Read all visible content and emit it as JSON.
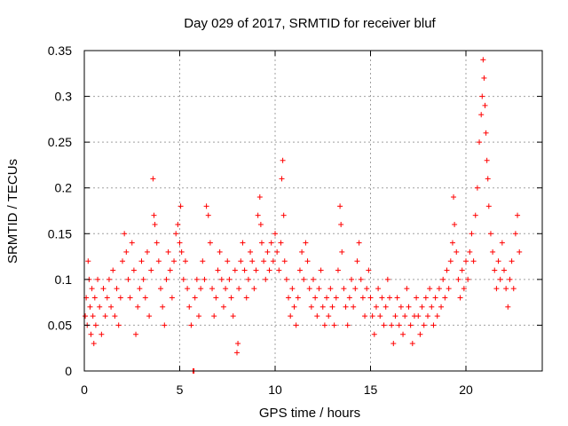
{
  "chart_data": {
    "type": "scatter",
    "title": "Day 029 of 2017, SRMTID for receiver bluf",
    "xlabel": "GPS time / hours",
    "ylabel": "SRMTID / TECUs",
    "xlim": [
      0,
      24
    ],
    "ylim": [
      0,
      0.35
    ],
    "xticks": [
      0,
      5,
      10,
      15,
      20
    ],
    "xtick_labels": [
      "0",
      "5",
      "10",
      "15",
      "20"
    ],
    "yticks": [
      0,
      0.05,
      0.1,
      0.15,
      0.2,
      0.25,
      0.3,
      0.35
    ],
    "ytick_labels": [
      "0",
      "0.05",
      "0.1",
      "0.15",
      "0.2",
      "0.25",
      "0.3",
      "0.35"
    ],
    "grid": true,
    "marker": "plus",
    "color": "#ff0000",
    "series": [
      {
        "name": "SRMTID",
        "points": [
          [
            0.05,
            0.06
          ],
          [
            0.1,
            0.08
          ],
          [
            0.15,
            0.05
          ],
          [
            0.2,
            0.12
          ],
          [
            0.25,
            0.1
          ],
          [
            0.3,
            0.07
          ],
          [
            0.35,
            0.04
          ],
          [
            0.4,
            0.09
          ],
          [
            0.45,
            0.06
          ],
          [
            0.5,
            0.03
          ],
          [
            0.55,
            0.08
          ],
          [
            0.6,
            0.05
          ],
          [
            0.7,
            0.1
          ],
          [
            0.8,
            0.07
          ],
          [
            0.9,
            0.04
          ],
          [
            1.0,
            0.09
          ],
          [
            1.1,
            0.06
          ],
          [
            1.2,
            0.08
          ],
          [
            1.3,
            0.1
          ],
          [
            1.4,
            0.07
          ],
          [
            1.5,
            0.11
          ],
          [
            1.6,
            0.06
          ],
          [
            1.7,
            0.09
          ],
          [
            1.8,
            0.05
          ],
          [
            1.9,
            0.08
          ],
          [
            2.0,
            0.12
          ],
          [
            2.1,
            0.15
          ],
          [
            2.2,
            0.13
          ],
          [
            2.3,
            0.1
          ],
          [
            2.4,
            0.08
          ],
          [
            2.5,
            0.14
          ],
          [
            2.6,
            0.11
          ],
          [
            2.7,
            0.04
          ],
          [
            2.8,
            0.07
          ],
          [
            2.9,
            0.09
          ],
          [
            3.0,
            0.12
          ],
          [
            3.1,
            0.1
          ],
          [
            3.2,
            0.08
          ],
          [
            3.3,
            0.13
          ],
          [
            3.4,
            0.06
          ],
          [
            3.5,
            0.11
          ],
          [
            3.6,
            0.21
          ],
          [
            3.65,
            0.17
          ],
          [
            3.7,
            0.16
          ],
          [
            3.8,
            0.14
          ],
          [
            3.9,
            0.12
          ],
          [
            4.0,
            0.09
          ],
          [
            4.1,
            0.07
          ],
          [
            4.2,
            0.05
          ],
          [
            4.3,
            0.1
          ],
          [
            4.4,
            0.13
          ],
          [
            4.5,
            0.11
          ],
          [
            4.6,
            0.08
          ],
          [
            4.7,
            0.12
          ],
          [
            4.8,
            0.15
          ],
          [
            4.9,
            0.16
          ],
          [
            5.0,
            0.14
          ],
          [
            5.05,
            0.18
          ],
          [
            5.1,
            0.13
          ],
          [
            5.2,
            0.1
          ],
          [
            5.3,
            0.12
          ],
          [
            5.4,
            0.09
          ],
          [
            5.5,
            0.07
          ],
          [
            5.6,
            0.05
          ],
          [
            5.7,
            0.0
          ],
          [
            5.75,
            0.0
          ],
          [
            5.8,
            0.08
          ],
          [
            5.9,
            0.1
          ],
          [
            6.0,
            0.06
          ],
          [
            6.1,
            0.09
          ],
          [
            6.2,
            0.12
          ],
          [
            6.3,
            0.1
          ],
          [
            6.4,
            0.18
          ],
          [
            6.5,
            0.17
          ],
          [
            6.6,
            0.14
          ],
          [
            6.7,
            0.09
          ],
          [
            6.8,
            0.06
          ],
          [
            6.9,
            0.08
          ],
          [
            7.0,
            0.11
          ],
          [
            7.1,
            0.13
          ],
          [
            7.2,
            0.1
          ],
          [
            7.3,
            0.07
          ],
          [
            7.4,
            0.09
          ],
          [
            7.5,
            0.12
          ],
          [
            7.6,
            0.1
          ],
          [
            7.7,
            0.08
          ],
          [
            7.8,
            0.06
          ],
          [
            7.9,
            0.11
          ],
          [
            8.0,
            0.02
          ],
          [
            8.05,
            0.03
          ],
          [
            8.1,
            0.09
          ],
          [
            8.2,
            0.12
          ],
          [
            8.3,
            0.14
          ],
          [
            8.4,
            0.11
          ],
          [
            8.5,
            0.08
          ],
          [
            8.6,
            0.1
          ],
          [
            8.7,
            0.13
          ],
          [
            8.8,
            0.12
          ],
          [
            8.9,
            0.09
          ],
          [
            9.0,
            0.11
          ],
          [
            9.1,
            0.17
          ],
          [
            9.2,
            0.19
          ],
          [
            9.25,
            0.16
          ],
          [
            9.3,
            0.14
          ],
          [
            9.4,
            0.12
          ],
          [
            9.5,
            0.1
          ],
          [
            9.6,
            0.13
          ],
          [
            9.7,
            0.11
          ],
          [
            9.8,
            0.14
          ],
          [
            9.9,
            0.12
          ],
          [
            10.0,
            0.15
          ],
          [
            10.1,
            0.13
          ],
          [
            10.2,
            0.11
          ],
          [
            10.3,
            0.14
          ],
          [
            10.35,
            0.21
          ],
          [
            10.4,
            0.23
          ],
          [
            10.45,
            0.17
          ],
          [
            10.5,
            0.12
          ],
          [
            10.6,
            0.1
          ],
          [
            10.7,
            0.08
          ],
          [
            10.8,
            0.06
          ],
          [
            10.9,
            0.09
          ],
          [
            11.0,
            0.07
          ],
          [
            11.1,
            0.05
          ],
          [
            11.2,
            0.08
          ],
          [
            11.3,
            0.11
          ],
          [
            11.4,
            0.13
          ],
          [
            11.5,
            0.1
          ],
          [
            11.6,
            0.14
          ],
          [
            11.7,
            0.12
          ],
          [
            11.8,
            0.09
          ],
          [
            11.9,
            0.07
          ],
          [
            12.0,
            0.1
          ],
          [
            12.1,
            0.08
          ],
          [
            12.2,
            0.06
          ],
          [
            12.3,
            0.09
          ],
          [
            12.4,
            0.11
          ],
          [
            12.5,
            0.07
          ],
          [
            12.6,
            0.05
          ],
          [
            12.7,
            0.08
          ],
          [
            12.8,
            0.06
          ],
          [
            12.9,
            0.09
          ],
          [
            13.0,
            0.07
          ],
          [
            13.1,
            0.05
          ],
          [
            13.2,
            0.08
          ],
          [
            13.3,
            0.11
          ],
          [
            13.4,
            0.18
          ],
          [
            13.45,
            0.16
          ],
          [
            13.5,
            0.13
          ],
          [
            13.6,
            0.09
          ],
          [
            13.7,
            0.07
          ],
          [
            13.8,
            0.05
          ],
          [
            13.9,
            0.08
          ],
          [
            14.0,
            0.1
          ],
          [
            14.1,
            0.07
          ],
          [
            14.2,
            0.09
          ],
          [
            14.3,
            0.12
          ],
          [
            14.4,
            0.14
          ],
          [
            14.5,
            0.1
          ],
          [
            14.6,
            0.08
          ],
          [
            14.7,
            0.06
          ],
          [
            14.8,
            0.09
          ],
          [
            14.9,
            0.11
          ],
          [
            15.0,
            0.08
          ],
          [
            15.1,
            0.06
          ],
          [
            15.2,
            0.04
          ],
          [
            15.3,
            0.07
          ],
          [
            15.4,
            0.09
          ],
          [
            15.5,
            0.06
          ],
          [
            15.6,
            0.08
          ],
          [
            15.7,
            0.05
          ],
          [
            15.8,
            0.07
          ],
          [
            15.9,
            0.1
          ],
          [
            16.0,
            0.08
          ],
          [
            16.1,
            0.05
          ],
          [
            16.2,
            0.03
          ],
          [
            16.3,
            0.06
          ],
          [
            16.4,
            0.08
          ],
          [
            16.5,
            0.05
          ],
          [
            16.6,
            0.07
          ],
          [
            16.7,
            0.04
          ],
          [
            16.8,
            0.06
          ],
          [
            16.9,
            0.09
          ],
          [
            17.0,
            0.07
          ],
          [
            17.1,
            0.05
          ],
          [
            17.2,
            0.03
          ],
          [
            17.3,
            0.06
          ],
          [
            17.4,
            0.08
          ],
          [
            17.5,
            0.06
          ],
          [
            17.6,
            0.04
          ],
          [
            17.7,
            0.07
          ],
          [
            17.8,
            0.05
          ],
          [
            17.9,
            0.08
          ],
          [
            18.0,
            0.06
          ],
          [
            18.1,
            0.09
          ],
          [
            18.2,
            0.07
          ],
          [
            18.3,
            0.05
          ],
          [
            18.4,
            0.08
          ],
          [
            18.5,
            0.06
          ],
          [
            18.6,
            0.09
          ],
          [
            18.7,
            0.07
          ],
          [
            18.8,
            0.1
          ],
          [
            18.9,
            0.08
          ],
          [
            19.0,
            0.11
          ],
          [
            19.1,
            0.09
          ],
          [
            19.2,
            0.12
          ],
          [
            19.3,
            0.14
          ],
          [
            19.35,
            0.19
          ],
          [
            19.4,
            0.16
          ],
          [
            19.5,
            0.13
          ],
          [
            19.6,
            0.1
          ],
          [
            19.7,
            0.08
          ],
          [
            19.8,
            0.11
          ],
          [
            19.9,
            0.09
          ],
          [
            20.0,
            0.12
          ],
          [
            20.1,
            0.1
          ],
          [
            20.2,
            0.13
          ],
          [
            20.3,
            0.15
          ],
          [
            20.4,
            0.12
          ],
          [
            20.5,
            0.17
          ],
          [
            20.6,
            0.2
          ],
          [
            20.7,
            0.25
          ],
          [
            20.8,
            0.28
          ],
          [
            20.85,
            0.3
          ],
          [
            20.9,
            0.34
          ],
          [
            20.95,
            0.32
          ],
          [
            21.0,
            0.29
          ],
          [
            21.05,
            0.26
          ],
          [
            21.1,
            0.23
          ],
          [
            21.15,
            0.21
          ],
          [
            21.2,
            0.18
          ],
          [
            21.3,
            0.15
          ],
          [
            21.4,
            0.13
          ],
          [
            21.5,
            0.11
          ],
          [
            21.6,
            0.09
          ],
          [
            21.7,
            0.12
          ],
          [
            21.8,
            0.1
          ],
          [
            21.9,
            0.14
          ],
          [
            22.0,
            0.11
          ],
          [
            22.1,
            0.09
          ],
          [
            22.2,
            0.07
          ],
          [
            22.3,
            0.1
          ],
          [
            22.4,
            0.12
          ],
          [
            22.5,
            0.09
          ],
          [
            22.6,
            0.15
          ],
          [
            22.7,
            0.17
          ],
          [
            22.8,
            0.13
          ]
        ]
      }
    ]
  }
}
